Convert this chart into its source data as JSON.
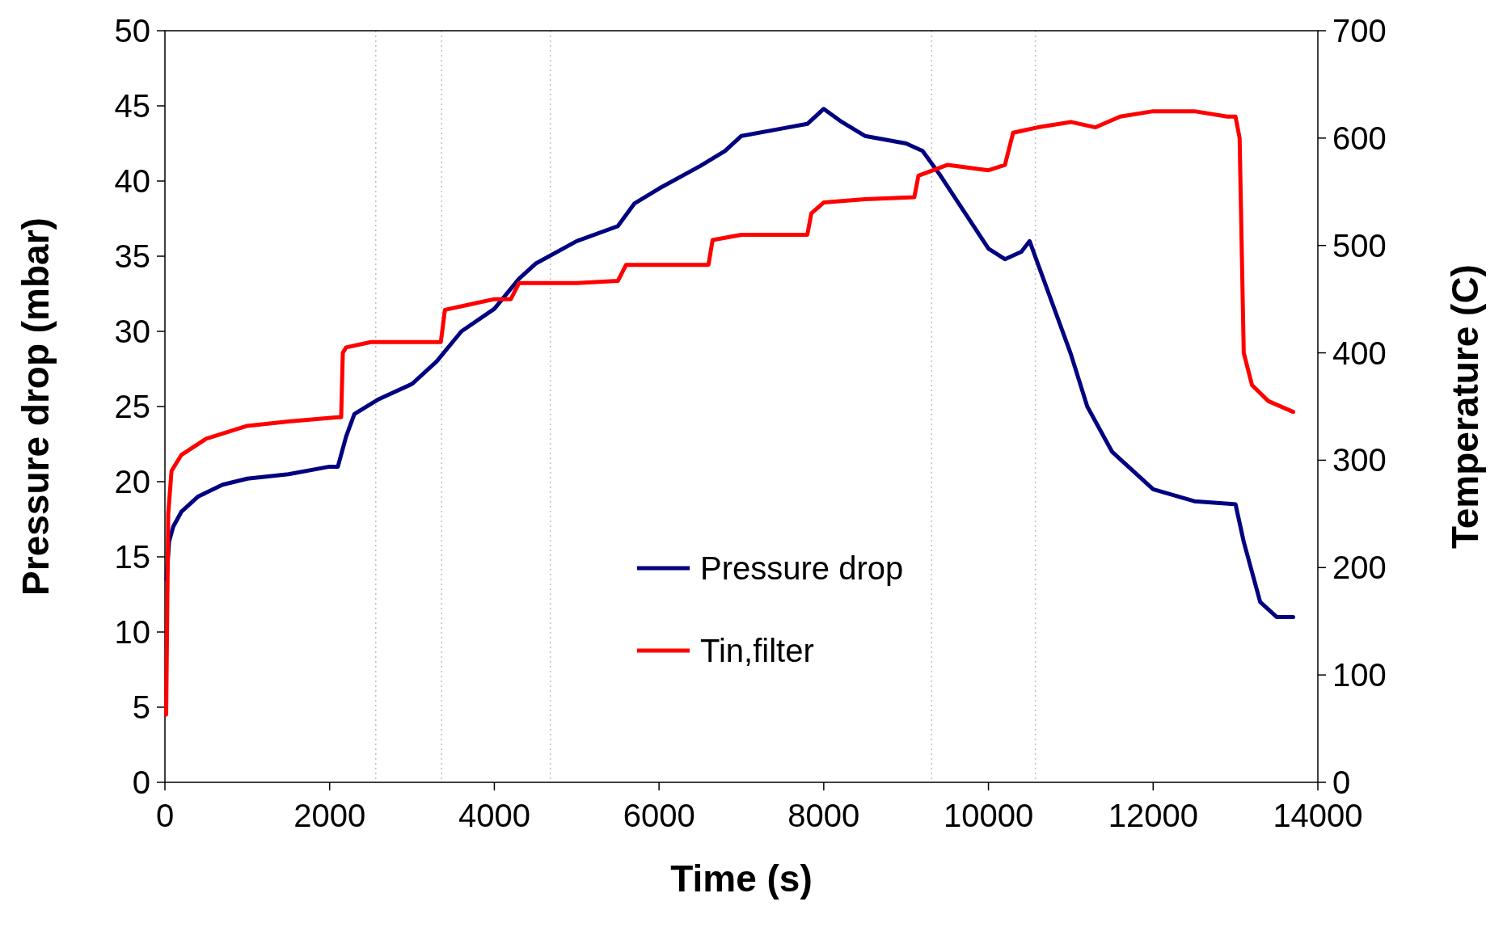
{
  "chart_data": {
    "type": "line",
    "xlabel": "Time (s)",
    "ylabel": "Pressure drop (mbar)",
    "y2label": "Temperature (C)",
    "xlim": [
      0,
      14000
    ],
    "xticks": [
      0,
      2000,
      4000,
      6000,
      8000,
      10000,
      12000,
      14000
    ],
    "ylim": [
      0,
      50
    ],
    "yticks": [
      0,
      5,
      10,
      15,
      20,
      25,
      30,
      35,
      40,
      45,
      50
    ],
    "y2lim": [
      0,
      700
    ],
    "y2ticks": [
      0,
      100,
      200,
      300,
      400,
      500,
      600,
      700
    ],
    "grid": false,
    "legend": "bottom",
    "marker": "none",
    "line_style": "solid",
    "ref_lines": [
      {
        "axis": "x",
        "value": 2560,
        "color": "#bfbfbf",
        "line_style": "dotted"
      },
      {
        "axis": "x",
        "value": 3360,
        "color": "#bfbfbf",
        "line_style": "dotted"
      },
      {
        "axis": "x",
        "value": 4680,
        "color": "#bfbfbf",
        "line_style": "dotted"
      },
      {
        "axis": "x",
        "value": 9310,
        "color": "#bfbfbf",
        "line_style": "dotted"
      },
      {
        "axis": "x",
        "value": 10570,
        "color": "#bfbfbf",
        "line_style": "dotted"
      }
    ],
    "series": [
      {
        "name": "Pressure drop",
        "color": "#000080",
        "x": [
          20,
          50,
          100,
          200,
          400,
          700,
          1000,
          1500,
          2000,
          2100,
          2200,
          2300,
          2600,
          3000,
          3300,
          3600,
          4000,
          4300,
          4500,
          5000,
          5500,
          5700,
          6000,
          6500,
          6800,
          7000,
          7500,
          7800,
          8000,
          8200,
          8500,
          9000,
          9200,
          9400,
          9700,
          10000,
          10200,
          10400,
          10500,
          10600,
          10800,
          11000,
          11200,
          11500,
          12000,
          12500,
          13000,
          13100,
          13300,
          13500,
          13700
        ],
        "values": [
          13.5,
          16,
          17,
          18,
          19,
          19.8,
          20.2,
          20.5,
          21,
          21,
          23,
          24.5,
          25.5,
          26.5,
          28,
          30,
          31.5,
          33.5,
          34.5,
          36,
          37,
          38.5,
          39.5,
          41,
          42,
          43,
          43.5,
          43.8,
          44.8,
          44,
          43,
          42.5,
          42,
          40.5,
          38,
          35.5,
          34.8,
          35.3,
          36,
          34.5,
          31.5,
          28.5,
          25,
          22,
          19.5,
          18.7,
          18.5,
          16,
          12,
          11,
          11
        ]
      },
      {
        "name": "Tin,filter",
        "color": "#ff0000",
        "axis": "y2",
        "x": [
          15,
          40,
          80,
          200,
          500,
          1000,
          1500,
          2100,
          2140,
          2160,
          2200,
          2500,
          3000,
          3350,
          3400,
          3700,
          4000,
          4200,
          4300,
          5000,
          5500,
          5600,
          6000,
          6600,
          6650,
          7000,
          7800,
          7850,
          8000,
          8500,
          9100,
          9150,
          9500,
          10000,
          10200,
          10300,
          10600,
          11000,
          11300,
          11600,
          12000,
          12500,
          12900,
          13000,
          13050,
          13100,
          13200,
          13400,
          13700
        ],
        "values": [
          63,
          250,
          290,
          305,
          320,
          332,
          336,
          340,
          340,
          400,
          405,
          410,
          410,
          410,
          440,
          445,
          450,
          450,
          465,
          465,
          467,
          482,
          482,
          482,
          505,
          510,
          510,
          530,
          540,
          543,
          545,
          565,
          575,
          570,
          575,
          605,
          610,
          615,
          610,
          620,
          625,
          625,
          620,
          620,
          600,
          400,
          370,
          355,
          345
        ]
      }
    ]
  }
}
